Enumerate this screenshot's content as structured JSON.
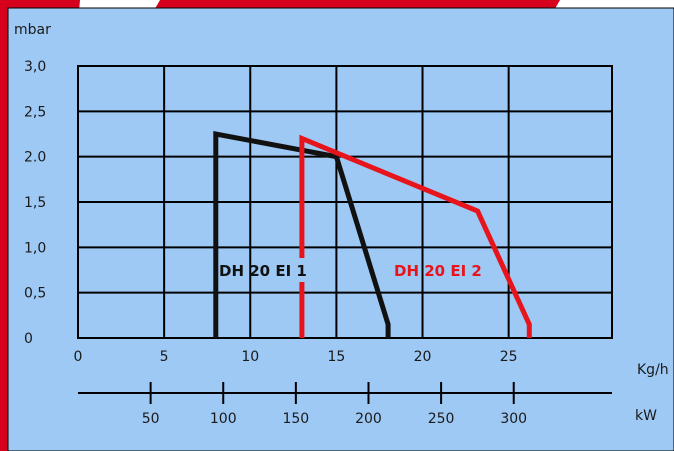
{
  "chart_data": {
    "type": "line",
    "ylabel": "mbar",
    "xlabel": "Kg/h",
    "secondary_xlabel": "kW",
    "xlim": [
      0,
      31
    ],
    "ylim": [
      0,
      3.0
    ],
    "x_ticks": [
      "0",
      "5",
      "10",
      "15",
      "20",
      "25"
    ],
    "x_tick_values": [
      0,
      5,
      10,
      15,
      20,
      25
    ],
    "y_ticks": [
      "0",
      "0,5",
      "1,0",
      "1,5",
      "2.0",
      "2,5",
      "3,0"
    ],
    "y_tick_values": [
      0,
      0.5,
      1.0,
      1.5,
      2.0,
      2.5,
      3.0
    ],
    "secondary_x_ticks": [
      "50",
      "100",
      "150",
      "200",
      "250",
      "300"
    ],
    "secondary_x_tick_values": [
      50,
      100,
      150,
      200,
      250,
      300
    ],
    "kw_per_kgh": 11.86,
    "grid": true,
    "series": [
      {
        "name": "DH 20 EI 1",
        "color": "#111111",
        "points": [
          [
            8.0,
            0
          ],
          [
            8.0,
            2.25
          ],
          [
            15.0,
            2.0
          ],
          [
            18.0,
            0.15
          ],
          [
            18.0,
            0
          ]
        ]
      },
      {
        "name": "DH 20 EI 2",
        "color": "#e8141c",
        "points": [
          [
            13.0,
            0
          ],
          [
            13.0,
            2.2
          ],
          [
            23.2,
            1.4
          ],
          [
            26.2,
            0.15
          ],
          [
            26.2,
            0
          ]
        ]
      }
    ]
  },
  "colors": {
    "background": "#9ec9f5",
    "brand_accent": "#d6001c",
    "grid": "#000000"
  }
}
